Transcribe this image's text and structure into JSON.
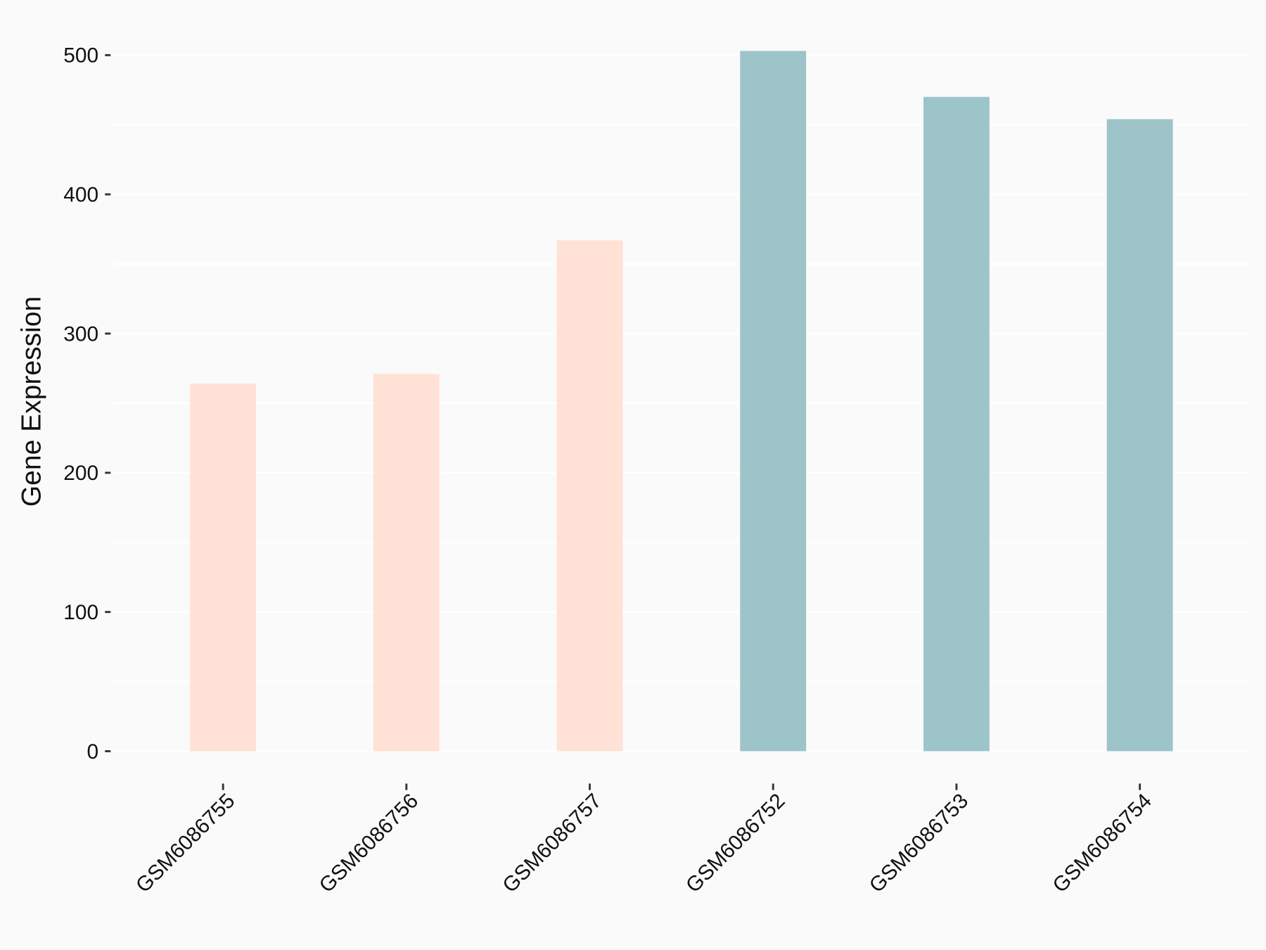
{
  "chart_data": {
    "type": "bar",
    "y_label": "Gene Expression",
    "categories": [
      "GSM6086755",
      "GSM6086756",
      "GSM6086757",
      "GSM6086752",
      "GSM6086753",
      "GSM6086754"
    ],
    "values": [
      264,
      271,
      367,
      503,
      470,
      454
    ],
    "colors": [
      "#FFE1D6",
      "#FFE1D6",
      "#FFE1D6",
      "#9DC4C8",
      "#9DC4C8",
      "#9DC4C8"
    ],
    "ylim": [
      -25,
      528
    ],
    "yticks": [
      0,
      100,
      200,
      300,
      400,
      500
    ],
    "minor_yticks": [
      50,
      150,
      250,
      350,
      450
    ],
    "grid": true
  }
}
